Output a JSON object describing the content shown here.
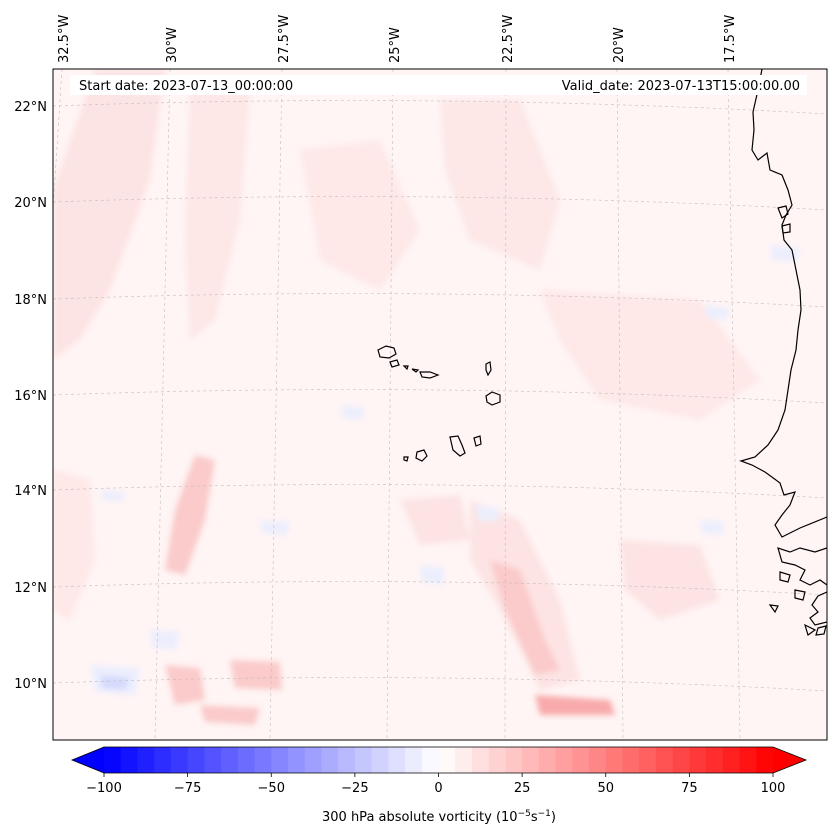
{
  "map": {
    "header": {
      "start_date": "Start date: 2023-07-13_00:00:00",
      "valid_date": "Valid_date: 2023-07-13T15:00:00.00"
    },
    "lon_labels": [
      "32.5°W",
      "30°W",
      "27.5°W",
      "25°W",
      "22.5°W",
      "20°W",
      "17.5°W"
    ],
    "lat_labels": [
      "22°N",
      "20°N",
      "18°N",
      "16°N",
      "14°N",
      "12°N",
      "10°N"
    ],
    "grid": true,
    "field_colors": {
      "background": "#fff5f5",
      "light_red": "#fde3e3",
      "mid_red": "#fbcaca",
      "strong_red": "#f8aaaa",
      "light_blue": "#eceefd",
      "mid_blue": "#d6dafc",
      "coast": "#000000"
    }
  },
  "colorbar": {
    "tick_labels": [
      "−100",
      "−75",
      "−50",
      "−25",
      "0",
      "25",
      "50",
      "75",
      "100"
    ],
    "tick_values": [
      -100,
      -75,
      -50,
      -25,
      0,
      25,
      50,
      75,
      100
    ],
    "range": [
      -100,
      100
    ],
    "title_main": "300 hPa absolute vorticity (10",
    "title_exp1": "−5",
    "title_mid": "s",
    "title_exp2": "−1",
    "title_end": ")",
    "cmap": "bwr",
    "extend": "both"
  }
}
